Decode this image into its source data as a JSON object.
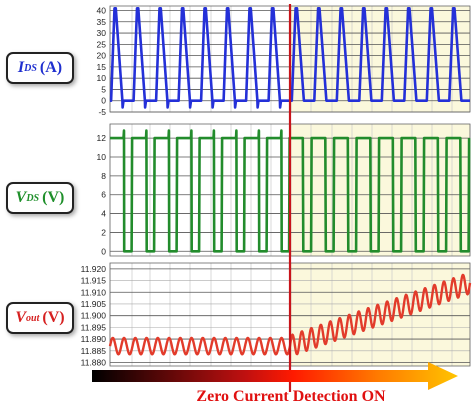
{
  "chart_data": [
    {
      "type": "line",
      "ylabel": {
        "symbol": "I",
        "subscript": "DS",
        "unit": "(A)"
      },
      "yticks": [
        40,
        35,
        30,
        25,
        20,
        15,
        10,
        5,
        0,
        -5
      ],
      "ylim": [
        -5,
        42
      ],
      "series": [
        {
          "color": "#2430d8",
          "waveform": "triangular current pulses",
          "peak": 41,
          "valley": 0,
          "pulses_before": 8,
          "pulses_after": 8,
          "negative_dip_before": -3
        }
      ]
    },
    {
      "type": "line",
      "ylabel": {
        "symbol": "V",
        "subscript": "DS",
        "unit": "(V)"
      },
      "yticks": [
        12,
        10,
        8,
        6,
        4,
        2,
        0
      ],
      "ylim": [
        -0.5,
        13.5
      ],
      "series": [
        {
          "color": "#228c2c",
          "waveform": "square pulses",
          "high": 12,
          "low": 0,
          "pulses_before": 8,
          "pulses_after": 8,
          "spike": 12.8
        }
      ]
    },
    {
      "type": "line",
      "ylabel": {
        "symbol": "V",
        "subscript": "out",
        "unit": "(V)"
      },
      "yticks": [
        "11.920",
        "11.915",
        "11.910",
        "11.905",
        "11.900",
        "11.895",
        "11.890",
        "11.885",
        "11.880"
      ],
      "ylim": [
        11.8785,
        11.9225
      ],
      "series": [
        {
          "color": "#e23b2b",
          "waveform": "ripple",
          "before": {
            "mean": 11.887,
            "amplitude": 0.0035
          },
          "after": {
            "start_mean": 11.887,
            "end_mean": 11.914,
            "amplitude": 0.0045
          },
          "cycles_before": 16,
          "cycles_after": 19
        }
      ]
    }
  ],
  "annotation": {
    "text": "Zero Current Detection ON",
    "color": "#e01010"
  },
  "colors": {
    "highlight": "#fbf8dc",
    "divider": "#c8141a"
  }
}
